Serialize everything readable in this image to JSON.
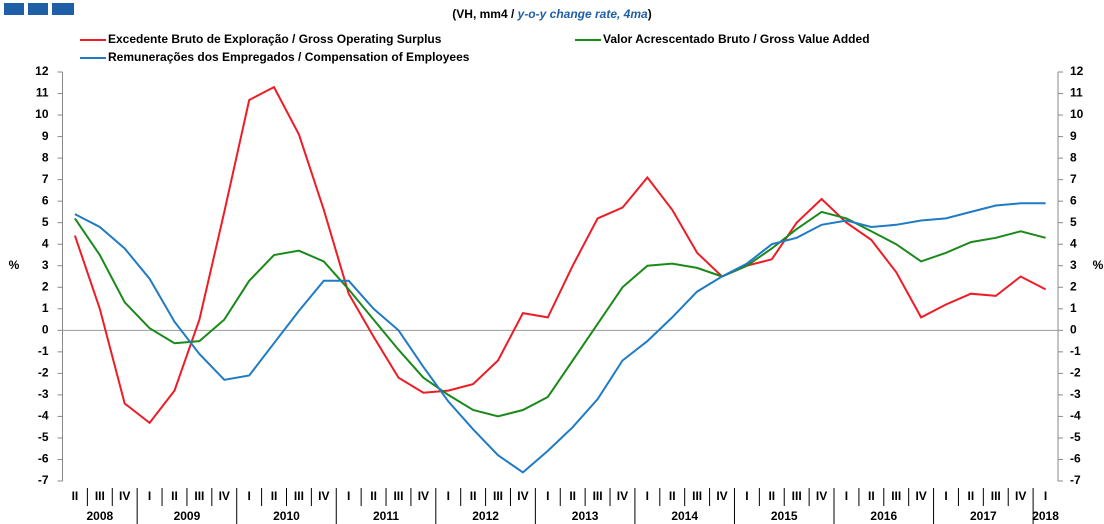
{
  "chart_data": {
    "type": "line",
    "subtitle": [
      "(VH, mm4 / ",
      "y-o-y change rate, 4ma",
      ")"
    ],
    "ylabel": "%",
    "y2label": "%",
    "categories": [
      "II",
      "III",
      "IV",
      "I",
      "II",
      "III",
      "IV",
      "I",
      "II",
      "III",
      "IV",
      "I",
      "II",
      "III",
      "IV",
      "I",
      "II",
      "III",
      "IV",
      "I",
      "II",
      "III",
      "IV",
      "I",
      "II",
      "III",
      "IV",
      "I",
      "II",
      "III",
      "IV",
      "I",
      "II",
      "III",
      "IV",
      "I",
      "II",
      "III",
      "IV",
      "I"
    ],
    "years": [
      "2008",
      "2009",
      "2010",
      "2011",
      "2012",
      "2013",
      "2014",
      "2015",
      "2016",
      "2017",
      "2018"
    ],
    "series": [
      {
        "name": "Excedente Bruto de Exploração / Gross Operating Surplus",
        "color": "#ee1c25",
        "values": [
          4.4,
          1.0,
          -3.4,
          -4.3,
          -2.8,
          0.5,
          5.5,
          10.7,
          11.3,
          9.1,
          5.6,
          1.7,
          -0.3,
          -2.2,
          -2.9,
          -2.8,
          -2.5,
          -1.4,
          0.8,
          0.6,
          3.0,
          5.2,
          5.7,
          7.1,
          5.6,
          3.6,
          2.5,
          3.0,
          3.3,
          5.0,
          6.1,
          5.0,
          4.2,
          2.7,
          0.6,
          1.2,
          1.7,
          1.6,
          2.5,
          1.9
        ]
      },
      {
        "name": "Valor Acrescentado Bruto / Gross Value Added",
        "color": "#1a8a1a",
        "values": [
          5.2,
          3.5,
          1.3,
          0.1,
          -0.6,
          -0.5,
          0.5,
          2.3,
          3.5,
          3.7,
          3.2,
          1.9,
          0.5,
          -0.9,
          -2.2,
          -3.0,
          -3.7,
          -4.0,
          -3.7,
          -3.1,
          -1.4,
          0.3,
          2.0,
          3.0,
          3.1,
          2.9,
          2.5,
          3.0,
          3.8,
          4.7,
          5.5,
          5.2,
          4.6,
          4.0,
          3.2,
          3.6,
          4.1,
          4.3,
          4.6,
          4.3
        ]
      },
      {
        "name": "Remunerações dos Empregados / Compensation of Employees",
        "color": "#1f7bc4",
        "values": [
          5.4,
          4.8,
          3.8,
          2.4,
          0.4,
          -1.1,
          -2.3,
          -2.1,
          -0.6,
          0.9,
          2.3,
          2.3,
          1.0,
          0.0,
          -1.7,
          -3.3,
          -4.6,
          -5.8,
          -6.6,
          -5.6,
          -4.5,
          -3.2,
          -1.4,
          -0.5,
          0.6,
          1.8,
          2.5,
          3.1,
          4.0,
          4.3,
          4.9,
          5.1,
          4.8,
          4.9,
          5.1,
          5.2,
          5.5,
          5.8,
          5.9,
          5.9
        ]
      }
    ],
    "ylim": [
      -7,
      12
    ],
    "yticks": [
      -7,
      -6,
      -5,
      -4,
      -3,
      -2,
      -1,
      0,
      1,
      2,
      3,
      4,
      5,
      6,
      7,
      8,
      9,
      10,
      11,
      12
    ],
    "y2lim": [
      -7,
      12
    ],
    "y2ticks": [
      -7,
      -6,
      -5,
      -4,
      -3,
      -2,
      -1,
      0,
      1,
      2,
      3,
      4,
      5,
      6,
      7,
      8,
      9,
      10,
      11,
      12
    ]
  }
}
